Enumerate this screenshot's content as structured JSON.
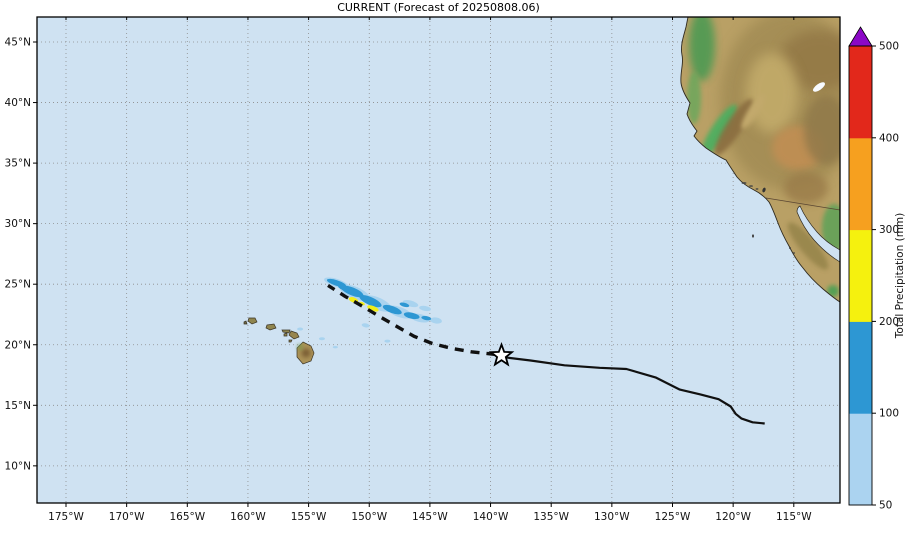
{
  "title": "CURRENT (Forecast of 20250808.06)",
  "map": {
    "ocean_color": "#cfe2f2",
    "grid_color": "#8c8c8c",
    "frame_color": "#000000",
    "x_axis_ticks": [
      {
        "label": "175°W",
        "lon": 175
      },
      {
        "label": "170°W",
        "lon": 170
      },
      {
        "label": "165°W",
        "lon": 165
      },
      {
        "label": "160°W",
        "lon": 160
      },
      {
        "label": "155°W",
        "lon": 155
      },
      {
        "label": "150°W",
        "lon": 150
      },
      {
        "label": "145°W",
        "lon": 145
      },
      {
        "label": "140°W",
        "lon": 140
      },
      {
        "label": "135°W",
        "lon": 135
      },
      {
        "label": "130°W",
        "lon": 130
      },
      {
        "label": "125°W",
        "lon": 125
      },
      {
        "label": "120°W",
        "lon": 120
      },
      {
        "label": "115°W",
        "lon": 115
      }
    ],
    "y_axis_ticks": [
      {
        "label": "45°N",
        "lat": 45
      },
      {
        "label": "40°N",
        "lat": 40
      },
      {
        "label": "35°N",
        "lat": 35
      },
      {
        "label": "30°N",
        "lat": 30
      },
      {
        "label": "25°N",
        "lat": 25
      },
      {
        "label": "20°N",
        "lat": 20
      },
      {
        "label": "15°N",
        "lat": 15
      },
      {
        "label": "10°N",
        "lat": 10
      }
    ]
  },
  "colorbar": {
    "title": "Total Precipitation (mm)",
    "tick_labels": [
      "50",
      "100",
      "200",
      "300",
      "400",
      "500"
    ],
    "bands": [
      {
        "from": 50,
        "to": 100,
        "color": "#abd3f0"
      },
      {
        "from": 100,
        "to": 200,
        "color": "#2d97d3"
      },
      {
        "from": 200,
        "to": 300,
        "color": "#f5f10e"
      },
      {
        "from": 300,
        "to": 400,
        "color": "#f6a01f"
      },
      {
        "from": 400,
        "to": 500,
        "color": "#e2281b"
      }
    ],
    "over_color": "#8b08c6"
  },
  "storm_track": {
    "line_color": "#111111",
    "current_position_marker": {
      "shape": "star",
      "lon_w": 139.1,
      "lat_n": 19.1
    },
    "solid_track_lonlat": [
      [
        139.1,
        19.0
      ],
      [
        136.7,
        18.7
      ],
      [
        133.9,
        18.3
      ],
      [
        131.0,
        18.1
      ],
      [
        128.8,
        18.0
      ],
      [
        126.4,
        17.3
      ],
      [
        124.4,
        16.3
      ],
      [
        122.7,
        15.9
      ],
      [
        121.2,
        15.5
      ],
      [
        120.2,
        14.9
      ],
      [
        119.8,
        14.3
      ],
      [
        119.3,
        13.9
      ],
      [
        118.4,
        13.6
      ],
      [
        117.4,
        13.5
      ]
    ],
    "dashed_track_lonlat": [
      [
        139.6,
        19.2
      ],
      [
        141.5,
        19.4
      ],
      [
        143.2,
        19.7
      ],
      [
        144.8,
        20.1
      ],
      [
        146.3,
        20.7
      ],
      [
        147.7,
        21.5
      ],
      [
        149.1,
        22.3
      ],
      [
        150.6,
        23.2
      ],
      [
        152.0,
        24.0
      ],
      [
        153.4,
        24.9
      ]
    ]
  },
  "precipitation": {
    "cells_format": "[lon_w, lat_n, rx_px, ry_px, rot_deg]",
    "light": {
      "color": "#a9d3ef",
      "cells": [
        [
          152.7,
          25.1,
          13,
          4,
          18
        ],
        [
          151.2,
          24.3,
          16,
          6,
          22
        ],
        [
          149.3,
          23.4,
          15,
          6,
          24
        ],
        [
          147.5,
          22.7,
          13,
          5,
          20
        ],
        [
          145.8,
          22.2,
          10,
          4,
          12
        ],
        [
          144.5,
          22.0,
          6,
          3,
          8
        ],
        [
          146.6,
          23.4,
          8,
          3,
          15
        ],
        [
          145.4,
          23.0,
          6,
          2.5,
          10
        ],
        [
          150.3,
          21.6,
          4,
          2,
          10
        ],
        [
          155.7,
          21.3,
          3,
          1.5,
          0
        ],
        [
          153.9,
          20.5,
          3,
          1.5,
          0
        ],
        [
          152.8,
          19.8,
          2.5,
          1.2,
          0
        ],
        [
          148.5,
          20.3,
          3,
          1.5,
          0
        ]
      ]
    },
    "moderate": {
      "color": "#2d97d3",
      "cells": [
        [
          152.7,
          25.1,
          10,
          2.8,
          18
        ],
        [
          152.1,
          24.7,
          6,
          2.5,
          20
        ],
        [
          151.4,
          24.4,
          12,
          4,
          22
        ],
        [
          149.9,
          23.6,
          12,
          4,
          24
        ],
        [
          148.1,
          22.9,
          10,
          3.5,
          20
        ],
        [
          146.5,
          22.4,
          8,
          3,
          12
        ],
        [
          147.1,
          23.3,
          5,
          2,
          15
        ],
        [
          145.3,
          22.2,
          5,
          2,
          10
        ]
      ]
    },
    "heavy": {
      "color": "#f2ee18",
      "cells": [
        [
          151.3,
          23.7,
          5,
          2.5,
          20
        ],
        [
          150.6,
          23.4,
          3,
          1.5,
          20
        ],
        [
          149.7,
          23.0,
          6,
          2.5,
          20
        ]
      ]
    }
  }
}
